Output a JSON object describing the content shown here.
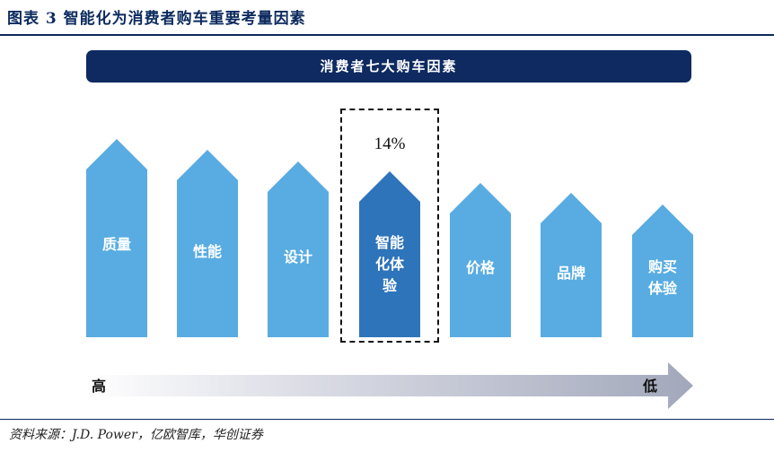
{
  "figure_title": "图表 3   智能化为消费者购车重要考量因素",
  "banner_title": "消费者七大购车因素",
  "factors": [
    {
      "label": "质量",
      "highlight": false
    },
    {
      "label": "性能",
      "highlight": false
    },
    {
      "label": "设计",
      "highlight": false
    },
    {
      "label": "智能\n化体\n验",
      "highlight": true
    },
    {
      "label": "价格",
      "highlight": false
    },
    {
      "label": "品牌",
      "highlight": false
    },
    {
      "label": "购买\n体验",
      "highlight": false
    }
  ],
  "highlight_value": "14%",
  "scale": {
    "high_label": "高",
    "low_label": "低"
  },
  "source": "资料来源：J.D. Power，亿欧智库，华创证券",
  "colors": {
    "navy": "#0e2a61",
    "arrow_light": "#58ace2",
    "arrow_dark": "#2e74bb"
  }
}
